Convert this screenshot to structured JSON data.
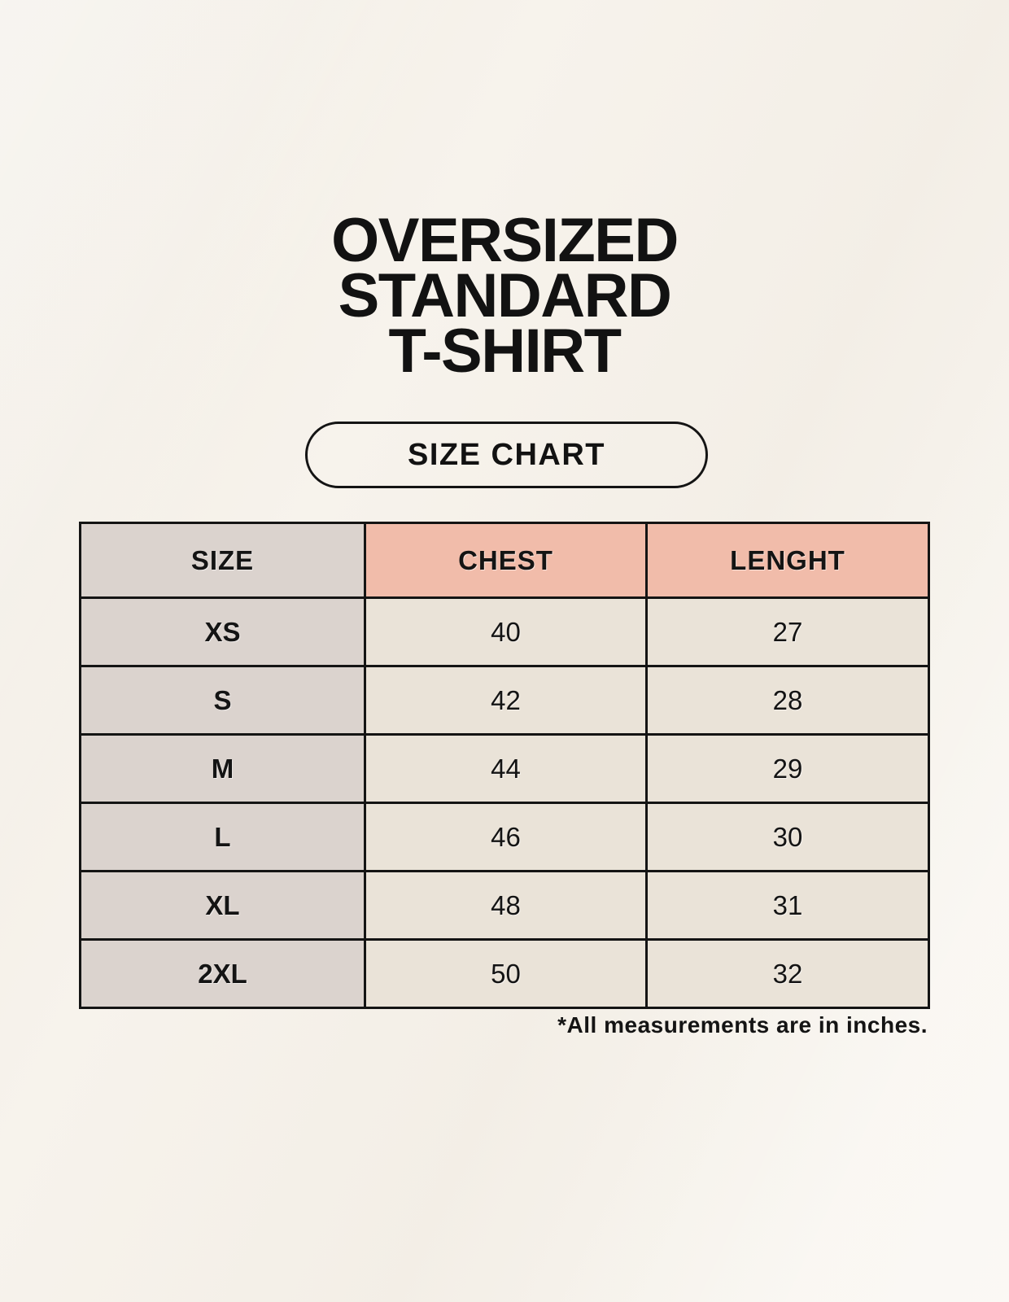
{
  "page": {
    "title_lines": [
      "OVERSIZED",
      "STANDARD",
      "T-SHIRT"
    ],
    "badge_label": "SIZE CHART",
    "footnote": "*All measurements are in inches."
  },
  "table": {
    "headers": [
      "SIZE",
      "CHEST",
      "LENGHT"
    ],
    "rows": [
      [
        "XS",
        "40",
        "27"
      ],
      [
        "S",
        "42",
        "28"
      ],
      [
        "M",
        "44",
        "29"
      ],
      [
        "L",
        "46",
        "30"
      ],
      [
        "XL",
        "48",
        "31"
      ],
      [
        "2XL",
        "50",
        "32"
      ]
    ]
  },
  "chart_data": {
    "type": "table",
    "title": "OVERSIZED STANDARD T-SHIRT",
    "subtitle": "SIZE CHART",
    "columns": [
      "SIZE",
      "CHEST",
      "LENGHT"
    ],
    "rows": [
      {
        "size": "XS",
        "chest": 40,
        "length": 27
      },
      {
        "size": "S",
        "chest": 42,
        "length": 28
      },
      {
        "size": "M",
        "chest": 44,
        "length": 29
      },
      {
        "size": "L",
        "chest": 46,
        "length": 30
      },
      {
        "size": "XL",
        "chest": 48,
        "length": 31
      },
      {
        "size": "2XL",
        "chest": 50,
        "length": 32
      }
    ],
    "note": "*All measurements are in inches.",
    "units": "inches"
  },
  "colors": {
    "background": "#f7f3ec",
    "header_gray": "#dbd3ce",
    "header_pink": "#f1bcaa",
    "cell_cream": "#eae3d8",
    "ink": "#141414"
  }
}
